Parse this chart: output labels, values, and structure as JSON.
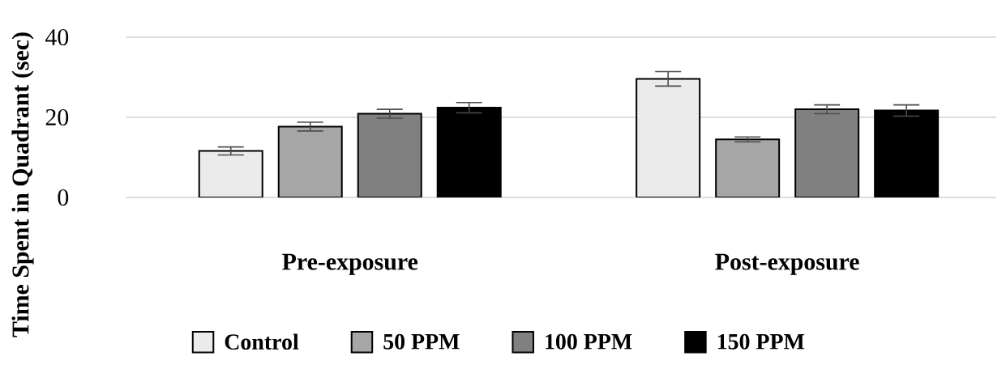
{
  "chart_data": {
    "type": "bar",
    "ylabel": "Time Spent in Quadrant (sec)",
    "categories": [
      "Pre-exposure",
      "Post-exposure"
    ],
    "series": [
      {
        "name": "Control",
        "color": "#ebebeb",
        "values": [
          11.6,
          29.6
        ],
        "errors": [
          1.0,
          1.8
        ]
      },
      {
        "name": "50 PPM",
        "color": "#a6a6a6",
        "values": [
          17.7,
          14.5
        ],
        "errors": [
          1.1,
          0.6
        ]
      },
      {
        "name": "100 PPM",
        "color": "#808080",
        "values": [
          20.9,
          22.0
        ],
        "errors": [
          1.1,
          1.1
        ]
      },
      {
        "name": "150 PPM",
        "color": "#000000",
        "values": [
          22.4,
          21.7
        ],
        "errors": [
          1.3,
          1.4
        ]
      }
    ],
    "ylim": [
      0,
      40
    ],
    "yticks": [
      0,
      20,
      40
    ],
    "grid": "y",
    "legend": "bottom"
  }
}
